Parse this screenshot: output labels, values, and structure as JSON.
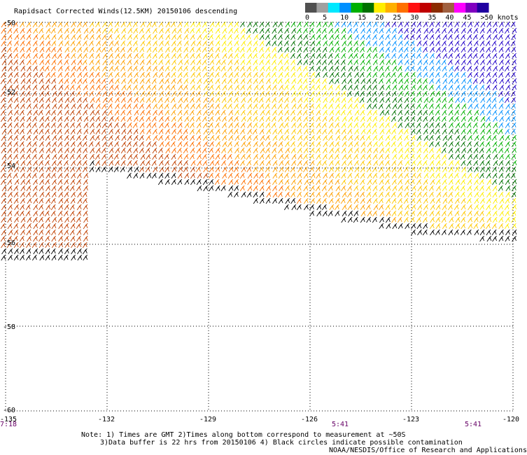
{
  "title": "Rapidsact Corrected Winds(12.5KM) 20150106 descending",
  "colorbar": {
    "labels": [
      "0",
      "5",
      "10",
      "15",
      "20",
      "25",
      "30",
      "35",
      "40",
      "45",
      ">50 knots"
    ],
    "colors": [
      "#505050",
      "#a0a0a0",
      "#00e8ff",
      "#0090ff",
      "#00b000",
      "#007000",
      "#ffee00",
      "#ffb000",
      "#ff7000",
      "#ff1010",
      "#c00000",
      "#8b2b00",
      "#a06040",
      "#ff00ff",
      "#8000c0",
      "#2000a0"
    ]
  },
  "map": {
    "lon_labels": [
      "-135",
      "-132",
      "-129",
      "-126",
      "-123",
      "-120"
    ],
    "lat_labels": [
      "-50",
      "-52",
      "-54",
      "-56",
      "-58",
      "-60"
    ],
    "time_labels": [
      "7:18",
      "5:41",
      "5:41"
    ]
  },
  "notes": [
    "Note: 1) Times are GMT 2)Times along bottom correspond to measurement at ~50S",
    "3)Data buffer is 22 hrs from 20150106 4) Black circles indicate possible contamination",
    "NOAA/NESDIS/Office of Research and Applications"
  ]
}
